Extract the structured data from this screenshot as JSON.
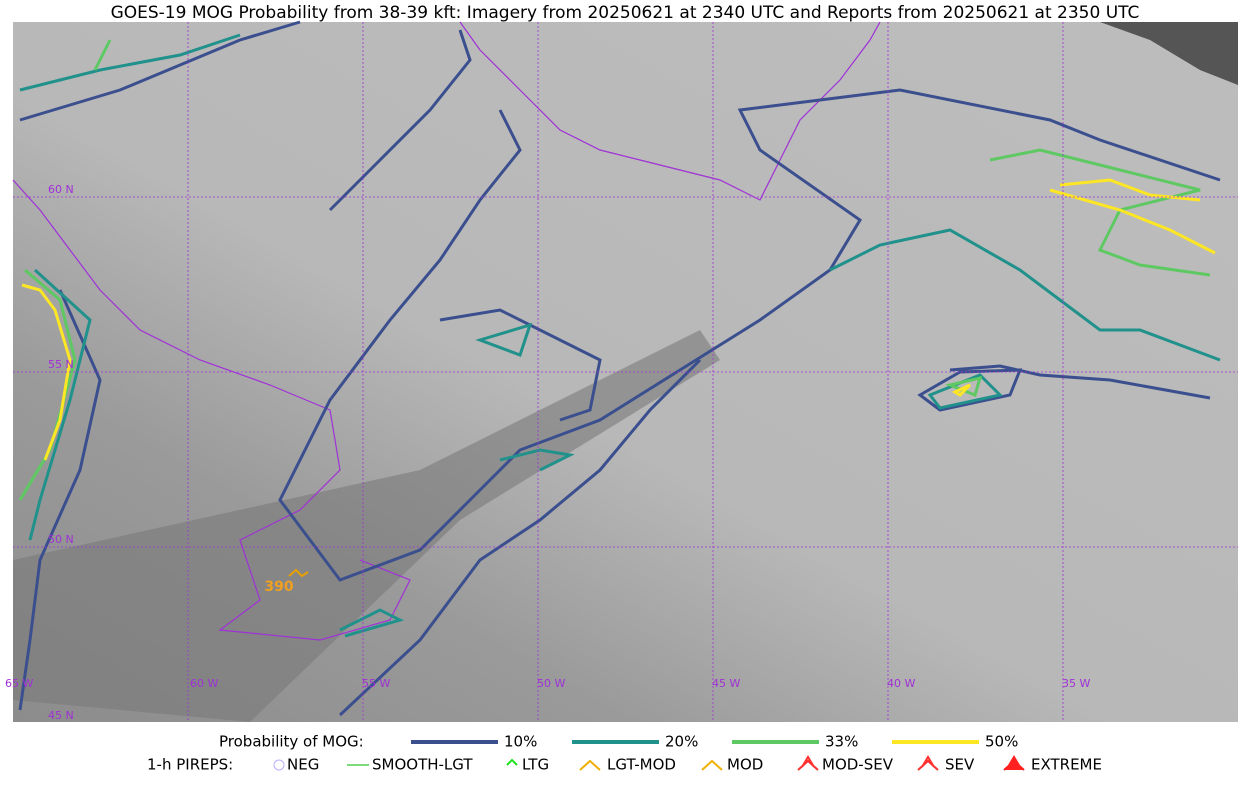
{
  "header": {
    "title": "GOES-19 MOG Probability from 38-39 kft: Imagery from 20250621 at 2340 UTC and Reports from 20250621 at 2350 UTC"
  },
  "map": {
    "lat_labels": [
      "60 N",
      "55 N",
      "50 N",
      "45 N"
    ],
    "lon_labels": [
      "65 W",
      "60 W",
      "55 W",
      "50 W",
      "45 W",
      "40 W",
      "35 W"
    ],
    "report_label": "390"
  },
  "legend": {
    "probability_title": "Probability of MOG:",
    "probability_items": [
      {
        "label": "10%",
        "color": "#3b4f8f"
      },
      {
        "label": "20%",
        "color": "#21918c"
      },
      {
        "label": "33%",
        "color": "#5ec962"
      },
      {
        "label": "50%",
        "color": "#fde725"
      }
    ],
    "pireps_title": "1-h PIREPS:",
    "pireps_items": [
      "NEG",
      "SMOOTH-LGT",
      "LTG",
      "LGT-MOD",
      "MOD",
      "MOD-SEV",
      "SEV",
      "EXTREME"
    ]
  }
}
